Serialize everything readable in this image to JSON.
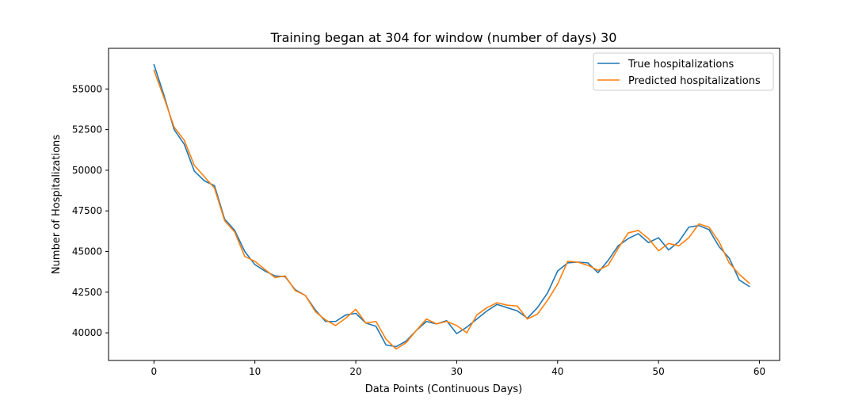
{
  "chart_data": {
    "type": "line",
    "title": "Training began at 304 for window (number of days) 30",
    "xlabel": "Data Points (Continuous Days)",
    "ylabel": "Number of Hospitalizations",
    "xlim": [
      -4.5,
      62.0
    ],
    "ylim": [
      38300,
      57500
    ],
    "xticks": [
      0,
      10,
      20,
      30,
      40,
      50,
      60
    ],
    "yticks": [
      40000,
      42500,
      45000,
      47500,
      50000,
      52500,
      55000
    ],
    "grid": false,
    "legend_position": "top-right",
    "x": [
      0,
      1,
      2,
      3,
      4,
      5,
      6,
      7,
      8,
      9,
      10,
      11,
      12,
      13,
      14,
      15,
      16,
      17,
      18,
      19,
      20,
      21,
      22,
      23,
      24,
      25,
      26,
      27,
      28,
      29,
      30,
      31,
      32,
      33,
      34,
      35,
      36,
      37,
      38,
      39,
      40,
      41,
      42,
      43,
      44,
      45,
      46,
      47,
      48,
      49,
      50,
      51,
      52,
      53,
      54,
      55,
      56,
      57,
      58,
      59
    ],
    "series": [
      {
        "name": "True hospitalizations",
        "color": "#1f77b4",
        "values": [
          56500,
          54600,
          52500,
          51600,
          49950,
          49350,
          49050,
          47000,
          46300,
          45000,
          44200,
          43800,
          43500,
          43450,
          42650,
          42300,
          41400,
          40700,
          40700,
          41100,
          41200,
          40600,
          40400,
          39250,
          39150,
          39500,
          40150,
          40700,
          40550,
          40750,
          39950,
          40350,
          40850,
          41350,
          41750,
          41550,
          41350,
          40900,
          41550,
          42450,
          43800,
          44300,
          44350,
          44300,
          43700,
          44450,
          45350,
          45800,
          46100,
          45550,
          45850,
          45100,
          45600,
          46500,
          46600,
          46350,
          45300,
          44600,
          43250,
          42850
        ]
      },
      {
        "name": "Predicted hospitalizations",
        "color": "#ff7f0e",
        "values": [
          56150,
          54450,
          52650,
          51850,
          50300,
          49600,
          48900,
          46900,
          46200,
          44700,
          44400,
          43900,
          43400,
          43500,
          42600,
          42300,
          41300,
          40800,
          40450,
          40900,
          41450,
          40600,
          40700,
          39600,
          39000,
          39400,
          40150,
          40850,
          40550,
          40700,
          40450,
          40000,
          41100,
          41550,
          41850,
          41700,
          41650,
          40850,
          41150,
          42000,
          43000,
          44400,
          44350,
          44150,
          43850,
          44150,
          45200,
          46150,
          46300,
          45800,
          45050,
          45500,
          45350,
          45850,
          46700,
          46500,
          45600,
          44300,
          43600,
          43050
        ]
      }
    ]
  }
}
